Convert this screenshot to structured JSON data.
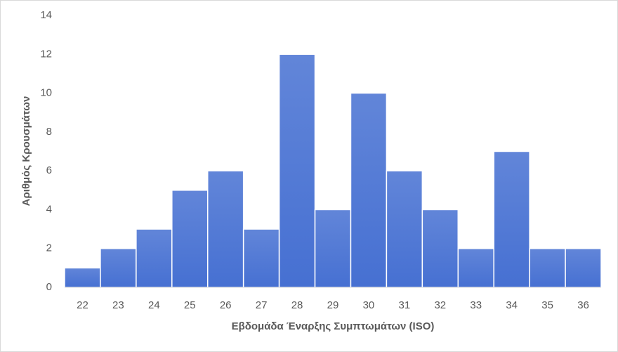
{
  "chart_data": {
    "type": "bar",
    "xlabel": "Εβδομάδα Έναρξης Συμπτωμάτων (ISO)",
    "ylabel": "Αριθμός Κρουσμάτων",
    "categories": [
      "22",
      "23",
      "24",
      "25",
      "26",
      "27",
      "28",
      "29",
      "30",
      "31",
      "32",
      "33",
      "34",
      "35",
      "36"
    ],
    "values": [
      1,
      2,
      3,
      5,
      6,
      3,
      12,
      4,
      10,
      6,
      4,
      2,
      7,
      2,
      2
    ],
    "color": "#4670d2",
    "ylim": [
      0,
      14
    ],
    "yticks": [
      0,
      2,
      4,
      6,
      8,
      10,
      12,
      14
    ],
    "grid": false
  }
}
